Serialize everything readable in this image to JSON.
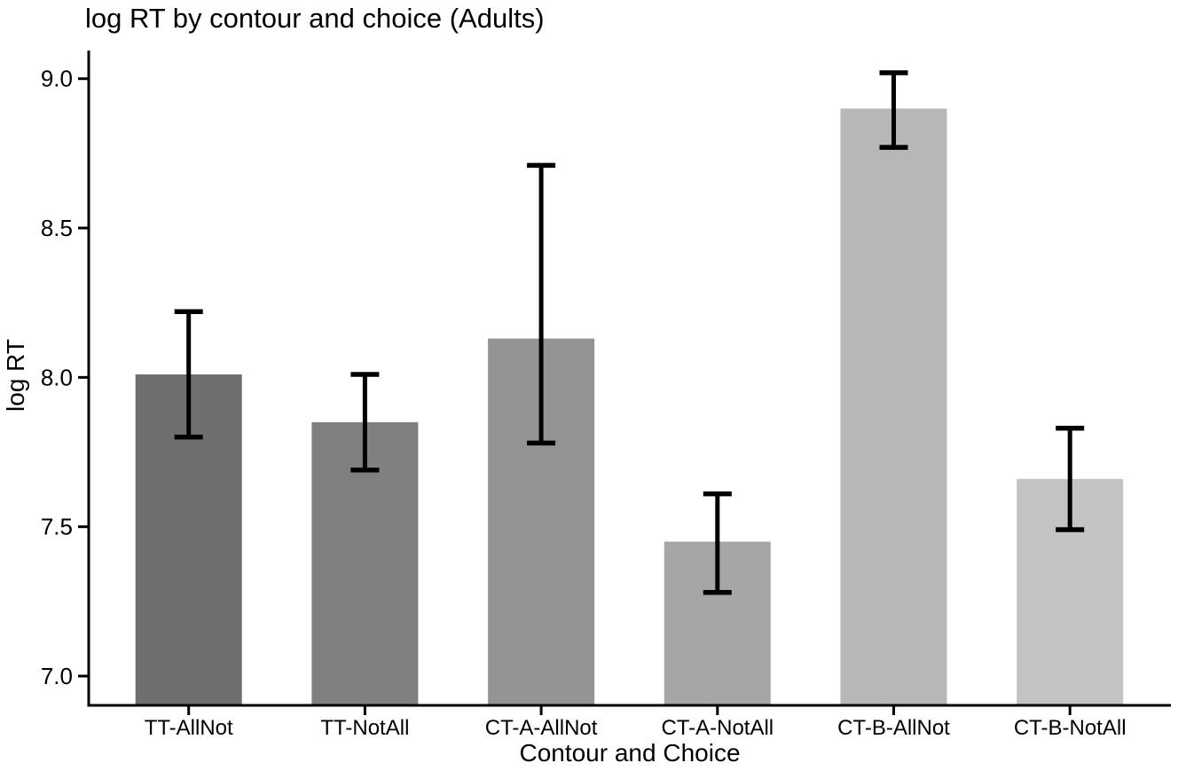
{
  "chart_data": {
    "type": "bar",
    "title": "log RT by contour and choice (Adults)",
    "xlabel": "Contour and Choice",
    "ylabel": "log RT",
    "categories": [
      "TT-AllNot",
      "TT-NotAll",
      "CT-A-AllNot",
      "CT-A-NotAll",
      "CT-B-AllNot",
      "CT-B-NotAll"
    ],
    "values": [
      8.01,
      7.85,
      8.13,
      7.45,
      8.9,
      7.66
    ],
    "error_low": [
      7.8,
      7.69,
      7.78,
      7.28,
      8.77,
      7.49
    ],
    "error_high": [
      8.22,
      8.01,
      8.71,
      7.61,
      9.02,
      7.83
    ],
    "bar_colors": [
      "#6f6f6f",
      "#808080",
      "#949494",
      "#a6a6a6",
      "#b7b7b7",
      "#c3c3c3"
    ],
    "y_ticks": [
      9.0,
      8.5,
      8.0,
      7.5,
      7.0
    ],
    "y_tick_labels": [
      "9.0",
      "8.5",
      "8.0",
      "7.5",
      "7.0"
    ],
    "ylim": [
      6.9,
      9.09
    ],
    "grid": false,
    "legend": null,
    "background": "#ffffff",
    "axis_color": "#000000",
    "errorbar_color": "#000000"
  }
}
